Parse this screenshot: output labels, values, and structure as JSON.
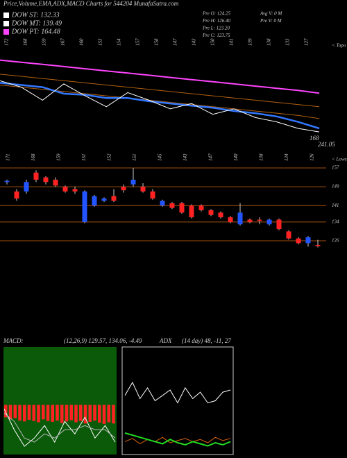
{
  "header": {
    "title": "Price,Volume,EMA,ADX,MACD Charts for 544204  MunafaSutra.com",
    "info": [
      "Pre  O: 124.25",
      "Pre  H: 126.40",
      "Pre  L: 123.20",
      "Pre  C: 123.75"
    ],
    "volume_info": [
      "Avg V: 0  M",
      "Pre  V: 0  M"
    ]
  },
  "legend": [
    {
      "label": "DOW ST: 132.33",
      "color": "#ffffff"
    },
    {
      "label": "DOW MT: 139.49",
      "color": "#ffffff"
    },
    {
      "label": "DOW PT: 164.48",
      "color": "#ff44ff"
    }
  ],
  "price_panel": {
    "top_labels": [
      172,
      168,
      159,
      167,
      160,
      153,
      154,
      157,
      158,
      147,
      143,
      150,
      141,
      139,
      138,
      133,
      127
    ],
    "edge_label": "< Topo",
    "right_labels": [
      "168",
      "241.05"
    ],
    "ylim": [
      116,
      212
    ],
    "series": [
      {
        "color": "#ff44ff",
        "values": [
          195,
          193,
          191,
          189,
          187,
          185,
          183,
          181,
          179,
          177,
          175,
          173,
          171,
          169,
          167,
          164.5
        ]
      },
      {
        "color": "#b06010",
        "values": [
          182,
          180,
          178,
          176,
          174,
          172,
          170,
          168,
          166,
          164,
          162,
          160,
          158,
          156,
          154,
          152
        ]
      },
      {
        "color": "#b06010",
        "values": [
          172,
          170,
          168,
          166,
          164,
          162,
          160,
          158,
          156,
          154,
          152,
          150,
          148,
          146,
          144,
          141
        ]
      },
      {
        "color": "#3377ff",
        "values": [
          174,
          172,
          170,
          164,
          163,
          160,
          160,
          157,
          155,
          153,
          151,
          148,
          146,
          143,
          138,
          132
        ]
      },
      {
        "color": "#ffffff",
        "values": [
          176,
          170,
          158,
          173,
          162,
          152,
          165,
          158,
          150,
          155,
          145,
          150,
          142,
          138,
          132,
          128.75
        ]
      }
    ]
  },
  "candle_panel": {
    "top_labels": [
      171,
      168,
      159,
      151,
      152,
      151,
      145,
      143,
      147,
      140,
      138,
      134,
      126
    ],
    "edge_label": "< Lowes",
    "ylim": [
      126,
      157
    ],
    "yticks": [
      157,
      149,
      141,
      134,
      126
    ],
    "up_color": "#2255ff",
    "down_color": "#ff2222",
    "candles": [
      [
        151,
        152,
        150,
        151.5
      ],
      [
        147,
        148,
        143,
        144
      ],
      [
        147,
        152,
        146,
        151
      ],
      [
        155,
        156,
        151,
        152
      ],
      [
        153,
        153.5,
        150,
        151
      ],
      [
        152,
        153,
        149,
        149.5
      ],
      [
        149,
        149.5,
        146.5,
        147
      ],
      [
        148,
        149,
        146,
        147
      ],
      [
        134,
        147.5,
        133.5,
        147
      ],
      [
        141,
        145.5,
        140.5,
        145
      ],
      [
        143,
        144.5,
        142.5,
        144
      ],
      [
        145,
        148,
        142.5,
        143
      ],
      [
        149,
        150,
        146.5,
        147.5
      ],
      [
        150,
        157,
        149,
        152
      ],
      [
        149,
        150.5,
        146.5,
        147
      ],
      [
        147,
        148,
        143.5,
        144
      ],
      [
        141,
        143.5,
        140.5,
        143
      ],
      [
        142,
        142.5,
        139.5,
        140
      ],
      [
        142,
        142.5,
        137.5,
        138
      ],
      [
        141,
        141.5,
        135.5,
        136
      ],
      [
        141,
        141.5,
        138.5,
        139
      ],
      [
        139,
        139.5,
        136.5,
        137
      ],
      [
        138,
        138.5,
        135.5,
        136
      ],
      [
        136,
        136.5,
        133.5,
        134
      ],
      [
        133,
        142,
        132.5,
        138
      ],
      [
        135,
        135.5,
        133.5,
        134
      ],
      [
        135,
        136,
        133,
        134.5
      ],
      [
        133,
        135.5,
        132.5,
        135
      ],
      [
        135,
        135.5,
        130.5,
        131
      ],
      [
        130,
        130.5,
        126.5,
        127
      ],
      [
        127,
        127.5,
        124.5,
        125
      ],
      [
        125,
        128,
        123.5,
        127.5
      ],
      [
        124.25,
        126.4,
        123.2,
        123.75
      ]
    ]
  },
  "macd_panel": {
    "label": "MACD:",
    "text": "(12,26,9) 129.57, 134.06, -4.49",
    "ylim": [
      -12,
      14
    ],
    "histogram": [
      -3,
      -3.5,
      -3.2,
      -3.8,
      -4,
      -3.6,
      -3.9,
      -4.2,
      -3.5,
      -3.9,
      -4.1,
      -3.8,
      -4.4,
      -4,
      -3.7,
      -4.2,
      -3.9,
      -4.5,
      -4.1,
      -3.8,
      -4.3,
      -4.6,
      -4.2,
      -4.49
    ],
    "lines": [
      {
        "color": "#ffffff",
        "values": [
          -1,
          -6,
          -10,
          -8,
          -5,
          -9,
          -4,
          -7,
          -3,
          -8,
          -5,
          -9
        ]
      },
      {
        "color": "#bbbbbb",
        "values": [
          -2,
          -4,
          -8,
          -9,
          -7,
          -8,
          -6,
          -6,
          -5,
          -6,
          -6,
          -8
        ]
      }
    ]
  },
  "adx_panel": {
    "label": "ADX",
    "text": "(14 day) 48, -11, 27",
    "ylim": [
      0,
      100
    ],
    "lines": [
      {
        "color": "#ffffff",
        "values": [
          55,
          67,
          52,
          62,
          50,
          55,
          60,
          48,
          62,
          52,
          58,
          48,
          50,
          58,
          60
        ]
      },
      {
        "color": "#dd6611",
        "values": [
          12,
          15,
          10,
          14,
          12,
          16,
          11,
          13,
          15,
          12,
          14,
          11,
          16,
          13,
          15
        ]
      },
      {
        "color": "#22dd22",
        "values": [
          20,
          18,
          16,
          14,
          12,
          10,
          14,
          11,
          9,
          12,
          10,
          8,
          11,
          9,
          12
        ]
      }
    ]
  }
}
